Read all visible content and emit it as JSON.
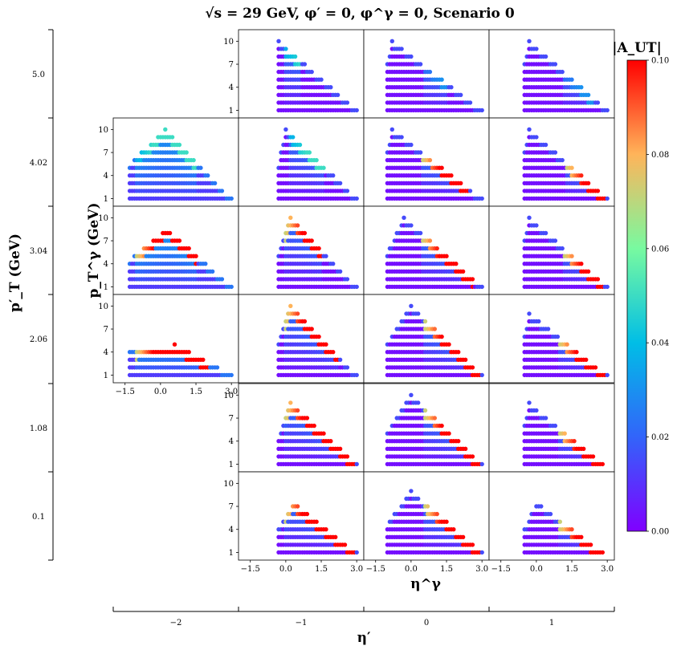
{
  "chart_data": {
    "type": "scatter",
    "title": "√s = 29 GeV,  φ′ = 0,  φ^γ = 0,  Scenario 0",
    "xlabel": "η^γ",
    "ylabel": "p_T^γ (GeV)",
    "outer_xlabel": "η′",
    "outer_ylabel": "p′_T (GeV)",
    "colorbar_label": "|A_UT|",
    "colorbar_range": [
      0.0,
      0.1
    ],
    "colorbar_ticks": [
      "0.00",
      "0.02",
      "0.04",
      "0.06",
      "0.08",
      "0.10"
    ],
    "colormap": "rainbow",
    "xlim": [
      -2.0,
      3.3
    ],
    "ylim": [
      0.0,
      11.5
    ],
    "xticks": [
      "−1.5",
      "0.0",
      "1.5",
      "3.0"
    ],
    "yticks": [
      "1",
      "4",
      "7",
      "10"
    ],
    "eta_prime_columns": [
      "−2",
      "−1",
      "0",
      "1"
    ],
    "pt_prime_rows": [
      "5.0",
      "4.02",
      "3.04",
      "2.06",
      "1.08",
      "0.1"
    ],
    "panels": [
      {
        "row": 0,
        "col": 1,
        "eta_min": -0.3,
        "eta_max": 3.0,
        "pt_peak": 10,
        "peak_eta": -0.3,
        "edge_max": 0.05,
        "band_lo": 0.0,
        "band_hi": 0.6,
        "base": 0.003
      },
      {
        "row": 0,
        "col": 2,
        "eta_min": -1.0,
        "eta_max": 3.0,
        "pt_peak": 10,
        "peak_eta": -0.8,
        "edge_max": 0.03,
        "band_lo": 0.6,
        "band_hi": 1.5,
        "base": 0.003
      },
      {
        "row": 0,
        "col": 3,
        "eta_min": -0.5,
        "eta_max": 3.0,
        "pt_peak": 10,
        "peak_eta": -0.3,
        "edge_max": 0.03,
        "band_lo": 1.2,
        "band_hi": 2.4,
        "base": 0.003
      },
      {
        "row": 1,
        "col": 0,
        "eta_min": -1.3,
        "eta_max": 3.0,
        "pt_peak": 10,
        "peak_eta": 0.2,
        "edge_max": 0.05,
        "band_lo": -1.0,
        "band_hi": 1.5,
        "base": 0.012
      },
      {
        "row": 1,
        "col": 1,
        "eta_min": -0.3,
        "eta_max": 3.0,
        "pt_peak": 10,
        "peak_eta": 0.0,
        "edge_max": 0.05,
        "band_lo": 0.2,
        "band_hi": 1.6,
        "base": 0.003
      },
      {
        "row": 1,
        "col": 2,
        "eta_min": -1.0,
        "eta_max": 3.0,
        "pt_peak": 10,
        "peak_eta": -0.8,
        "edge_max": 0.1,
        "band_lo": 0.5,
        "band_hi": 2.4,
        "base": 0.003
      },
      {
        "row": 1,
        "col": 3,
        "eta_min": -0.5,
        "eta_max": 3.0,
        "pt_peak": 10,
        "peak_eta": -0.3,
        "edge_max": 0.1,
        "band_lo": 1.3,
        "band_hi": 2.9,
        "base": 0.003
      },
      {
        "row": 2,
        "col": 0,
        "eta_min": -1.3,
        "eta_max": 3.0,
        "pt_peak": 8.5,
        "peak_eta": 0.3,
        "edge_max": 0.1,
        "band_lo": -1.0,
        "band_hi": 1.5,
        "base": 0.012
      },
      {
        "row": 2,
        "col": 1,
        "eta_min": -0.3,
        "eta_max": 3.0,
        "pt_peak": 10,
        "peak_eta": 0.2,
        "edge_max": 0.1,
        "band_lo": 0.0,
        "band_hi": 1.5,
        "base": 0.003
      },
      {
        "row": 2,
        "col": 2,
        "eta_min": -1.0,
        "eta_max": 3.0,
        "pt_peak": 10,
        "peak_eta": -0.3,
        "edge_max": 0.1,
        "band_lo": 0.5,
        "band_hi": 2.6,
        "base": 0.003
      },
      {
        "row": 2,
        "col": 3,
        "eta_min": -0.5,
        "eta_max": 3.0,
        "pt_peak": 10,
        "peak_eta": -0.3,
        "edge_max": 0.1,
        "band_lo": 1.2,
        "band_hi": 2.8,
        "base": 0.003
      },
      {
        "row": 3,
        "col": 0,
        "eta_min": -1.3,
        "eta_max": 3.0,
        "pt_peak": 5,
        "peak_eta": 0.6,
        "edge_max": 0.1,
        "band_lo": -1.0,
        "band_hi": 2.0,
        "base": 0.012
      },
      {
        "row": 3,
        "col": 1,
        "eta_min": -0.3,
        "eta_max": 3.0,
        "pt_peak": 10,
        "peak_eta": 0.2,
        "edge_max": 0.1,
        "band_lo": 0.0,
        "band_hi": 2.2,
        "base": 0.003
      },
      {
        "row": 3,
        "col": 2,
        "eta_min": -1.0,
        "eta_max": 3.0,
        "pt_peak": 10,
        "peak_eta": 0.0,
        "edge_max": 0.1,
        "band_lo": 0.6,
        "band_hi": 2.9,
        "base": 0.003
      },
      {
        "row": 3,
        "col": 3,
        "eta_min": -0.5,
        "eta_max": 3.0,
        "pt_peak": 9,
        "peak_eta": -0.3,
        "edge_max": 0.1,
        "band_lo": 1.0,
        "band_hi": 2.9,
        "base": 0.003
      },
      {
        "row": 4,
        "col": 1,
        "eta_min": -0.3,
        "eta_max": 3.0,
        "pt_peak": 9,
        "peak_eta": 0.2,
        "edge_max": 0.1,
        "band_lo": 0.0,
        "band_hi": 2.9,
        "base": 0.003
      },
      {
        "row": 4,
        "col": 2,
        "eta_min": -1.0,
        "eta_max": 3.0,
        "pt_peak": 10,
        "peak_eta": 0.0,
        "edge_max": 0.1,
        "band_lo": 0.6,
        "band_hi": 2.9,
        "base": 0.003
      },
      {
        "row": 4,
        "col": 3,
        "eta_min": -0.5,
        "eta_max": 2.8,
        "pt_peak": 9,
        "peak_eta": -0.3,
        "edge_max": 0.1,
        "band_lo": 1.0,
        "band_hi": 2.9,
        "base": 0.003
      },
      {
        "row": 5,
        "col": 1,
        "eta_min": -0.3,
        "eta_max": 3.0,
        "pt_peak": 7.5,
        "peak_eta": 0.3,
        "edge_max": 0.1,
        "band_lo": 0.0,
        "band_hi": 2.9,
        "base": 0.003
      },
      {
        "row": 5,
        "col": 2,
        "eta_min": -1.0,
        "eta_max": 3.0,
        "pt_peak": 9,
        "peak_eta": 0.0,
        "edge_max": 0.1,
        "band_lo": 0.6,
        "band_hi": 2.9,
        "base": 0.003
      },
      {
        "row": 5,
        "col": 3,
        "eta_min": -0.5,
        "eta_max": 2.8,
        "pt_peak": 7.5,
        "peak_eta": 0.0,
        "edge_max": 0.1,
        "band_lo": 1.0,
        "band_hi": 2.8,
        "base": 0.003
      }
    ]
  }
}
